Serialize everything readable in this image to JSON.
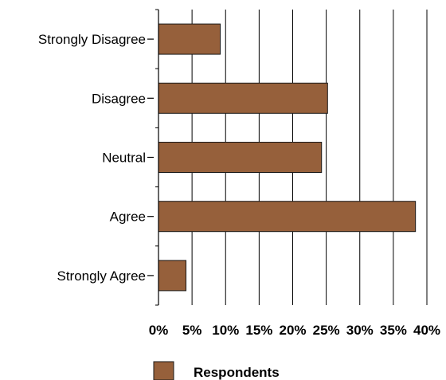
{
  "chart_data": {
    "type": "bar",
    "orientation": "horizontal",
    "categories": [
      "Strongly Disagree",
      "Disagree",
      "Neutral",
      "Agree",
      "Strongly Agree"
    ],
    "series": [
      {
        "name": "Respondents",
        "values": [
          9.2,
          25.2,
          24.3,
          38.3,
          4.1
        ]
      }
    ],
    "xlim": [
      0,
      40
    ],
    "xticks": [
      "0%",
      "5%",
      "10%",
      "15%",
      "20%",
      "25%",
      "30%",
      "35%",
      "40%"
    ],
    "grid": "vertical",
    "legend": "bottom",
    "colors": {
      "bar": "#96603b",
      "bar_edge": "#1a1a1a",
      "grid": "#000000"
    }
  }
}
